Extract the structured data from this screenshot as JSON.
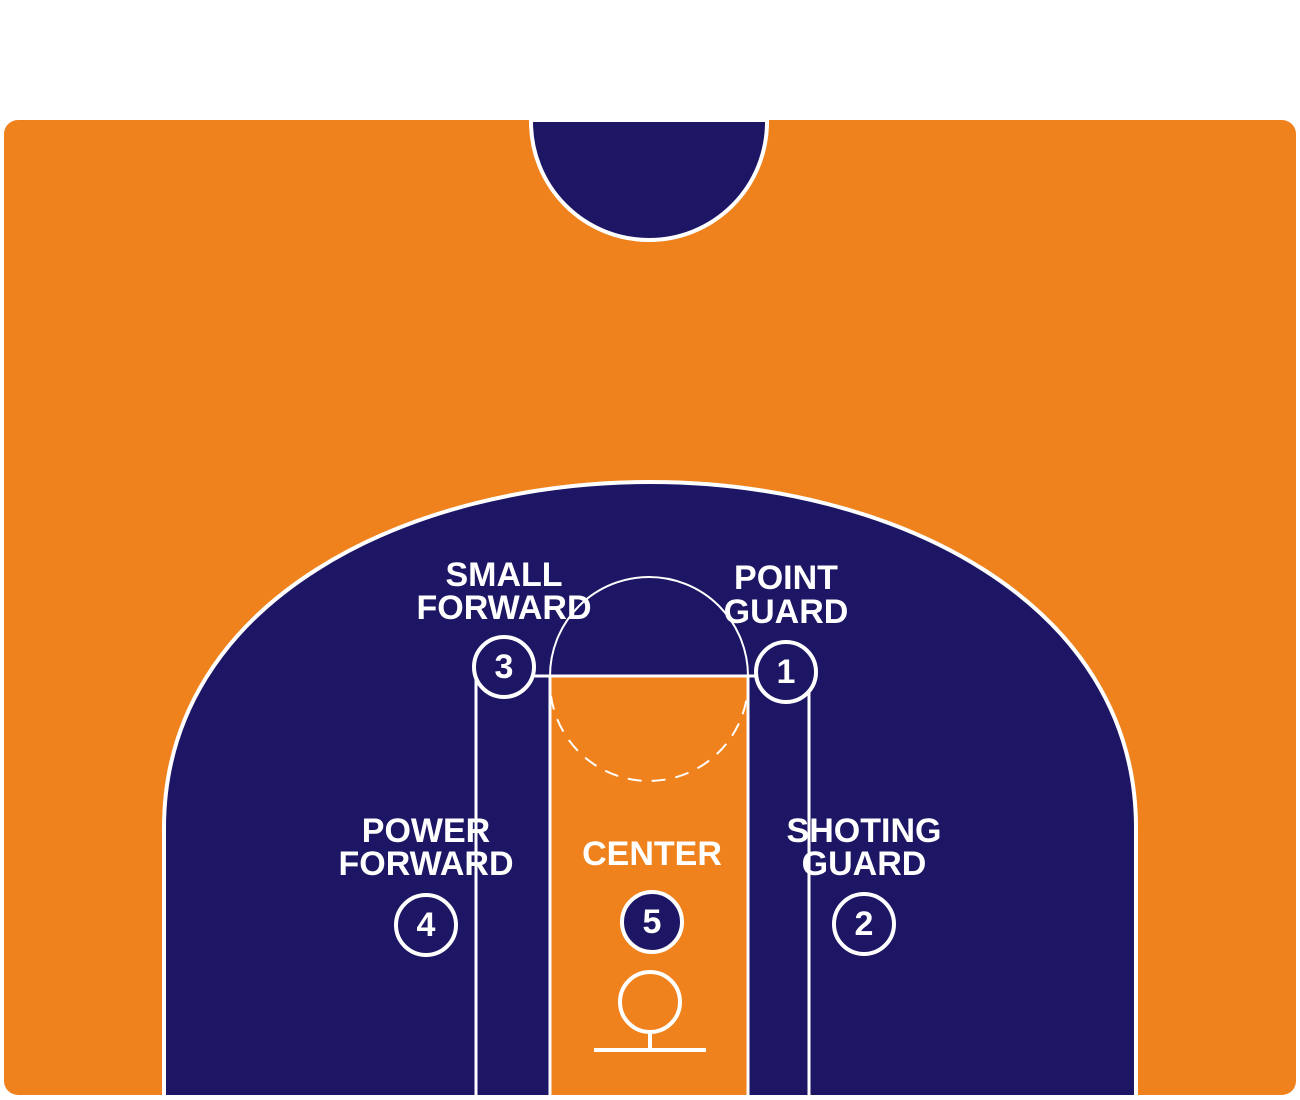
{
  "colors": {
    "court_floor": "#EF821C",
    "paint_zone": "#1D1664",
    "lines": "#FFFFFF"
  },
  "positions": [
    {
      "number": "1",
      "label_line1": "POINT",
      "label_line2": "GUARD"
    },
    {
      "number": "2",
      "label_line1": "SHOTING",
      "label_line2": "GUARD"
    },
    {
      "number": "3",
      "label_line1": "SMALL",
      "label_line2": "FORWARD"
    },
    {
      "number": "4",
      "label_line1": "POWER",
      "label_line2": "FORWARD"
    },
    {
      "number": "5",
      "label_line1": "CENTER",
      "label_line2": ""
    }
  ]
}
